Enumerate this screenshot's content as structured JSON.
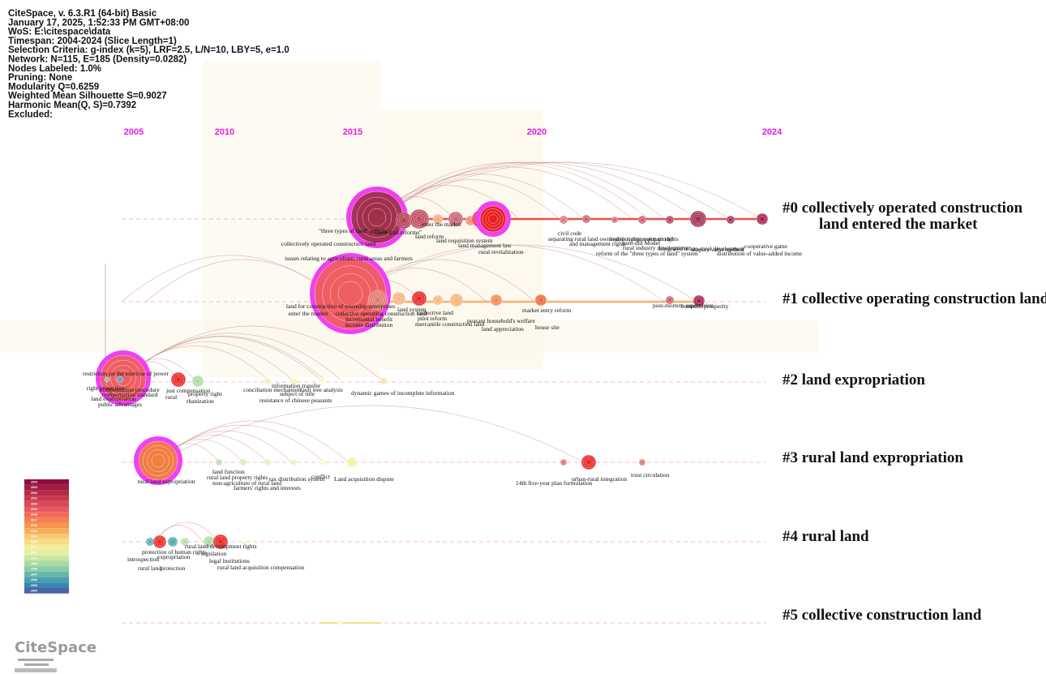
{
  "header": [
    "CiteSpace, v. 6.3.R1 (64-bit) Basic",
    "January 17, 2025, 1:52:33 PM GMT+08:00",
    "WoS: E:\\citespace\\data",
    "Timespan: 2004-2024 (Slice Length=1)",
    "Selection Criteria: g-index (k=5), LRF=2.5, L/N=10, LBY=5, e=1.0",
    "Network: N=115, E=185 (Density=0.0282)",
    "Nodes Labeled: 1.0%",
    "Pruning: None",
    "Modularity Q=0.6259",
    "Weighted Mean Silhouette S=0.9027",
    "Harmonic Mean(Q, S)=0.7392",
    "Excluded:"
  ],
  "years": [
    "2005",
    "2010",
    "2015",
    "2020",
    "2024"
  ],
  "clusters": [
    {
      "label_lines": [
        "#0 collectively operated construction",
        "land entered the market"
      ],
      "nodes": [
        "\"three types of land\" reform",
        "\"three trial reforms\"",
        "collectively operated construction land",
        "enter the market",
        "land reform",
        "issues relating to agriculture; rural areas and farmers",
        "land requisition system",
        "land management law",
        "rural revitalization",
        "civil code",
        "separating rural land ownership rights; contract rights",
        "and management rights",
        "logistics regression model",
        "psm-did Model",
        "rural industry development",
        "reform of the \"three types of land\" system",
        "integrated urban-rural development",
        "shapley value method",
        "cooperative game",
        "distribution of value-added income"
      ]
    },
    {
      "label_lines": [
        "#1 collective operating construction land"
      ],
      "nodes": [
        "land for construction of township enterprises",
        "enter the market",
        "collective operating construction land",
        "incremental benefit",
        "income distribution",
        "land system",
        "collective land",
        "pilot reform",
        "mercantile construction land",
        "peasant household's welfare",
        "land appreciation",
        "market entry reform",
        "house site",
        "post-mortem supervision",
        "common prosperity"
      ]
    },
    {
      "label_lines": [
        "#2 land expropriation"
      ],
      "nodes": [
        "restriction on the exercise of power",
        "right protection",
        "compensation procedure",
        "compensation standard",
        "land expropriation",
        "public advantages",
        "just compensation",
        "rural",
        "property right",
        "rbanization",
        "conciliation mechanism",
        "information transfer",
        "subject of title",
        "fault tree analysis",
        "resistance of chinese peasants",
        "dynamic games of incomplete information"
      ]
    },
    {
      "label_lines": [
        "#3 rural land expropriation"
      ],
      "nodes": [
        "rural land expropriation",
        "land function",
        "rural land property rights",
        "non-agriculture of rural land",
        "farmers' rights and interests",
        "tax distribution system",
        "conflict",
        "Land acquisition dispute",
        "14th five-year plan formulation",
        "urban-rural integration",
        "trust circulation"
      ]
    },
    {
      "label_lines": [
        "#4 rural land"
      ],
      "nodes": [
        "protection of human rights",
        "introspection",
        "expropriation",
        "rural land development rights",
        "legislation",
        "legal institutions",
        "rural land",
        "protection",
        "rural land acquisition compensation"
      ]
    },
    {
      "label_lines": [
        "#5 collective construction land"
      ],
      "nodes": []
    }
  ],
  "legend": [
    "2024",
    "2023",
    "2022",
    "2021",
    "2020",
    "2019",
    "2018",
    "2017",
    "2016",
    "2015",
    "2014",
    "2013",
    "2012",
    "2011",
    "2010",
    "2009",
    "2008",
    "2007",
    "2006",
    "2005",
    "2004"
  ],
  "logo": "CiteSpace"
}
